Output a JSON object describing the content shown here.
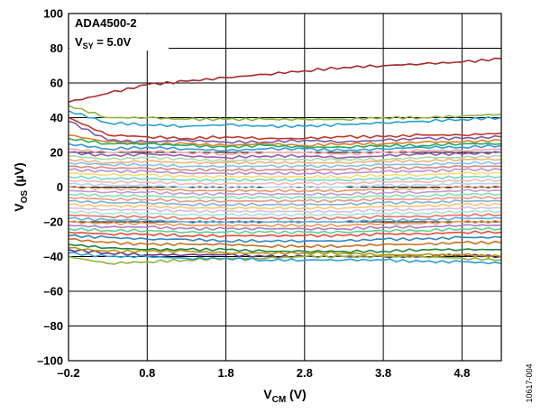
{
  "chart_data": {
    "type": "line",
    "title": "",
    "annotation": {
      "part": "ADA4500-2",
      "condition_prefix": "V",
      "condition_sub": "SY",
      "condition_suffix": " = 5.0V"
    },
    "xlabel": {
      "main": "V",
      "sub": "CM",
      "unit": " (V)"
    },
    "ylabel": {
      "main": "V",
      "sub": "OS",
      "unit": " (µV)"
    },
    "xlim": [
      -0.2,
      5.3
    ],
    "ylim": [
      -100,
      100
    ],
    "x_ticks": [
      -0.2,
      0.8,
      1.8,
      2.8,
      3.8,
      4.8
    ],
    "x_tick_labels": [
      "–0.2",
      "0.8",
      "1.8",
      "2.8",
      "3.8",
      "4.8"
    ],
    "y_ticks": [
      100,
      80,
      60,
      40,
      20,
      0,
      -20,
      -40,
      -60,
      -80,
      -100
    ],
    "y_tick_labels": [
      "100",
      "80",
      "60",
      "40",
      "20",
      "0",
      "–20",
      "–40",
      "–60",
      "–80",
      "–100"
    ],
    "grid": true,
    "legend": "none",
    "figure_id": "10617-004",
    "x": [
      -0.2,
      0.3,
      0.8,
      1.3,
      1.8,
      2.3,
      2.8,
      3.3,
      3.8,
      4.3,
      4.8,
      5.3
    ],
    "series": [
      {
        "color": "#a52a2a",
        "values": [
          49,
          54,
          59,
          61,
          63,
          65,
          67,
          69,
          70,
          71,
          72,
          74
        ]
      },
      {
        "color": "#8fb33a",
        "values": [
          47,
          40,
          40,
          39,
          39,
          39,
          39,
          39,
          40,
          40,
          41,
          42
        ]
      },
      {
        "color": "#2a9fd0",
        "values": [
          44,
          37,
          36,
          35,
          36,
          35,
          35,
          36,
          37,
          38,
          39,
          40
        ]
      },
      {
        "color": "#c0392b",
        "values": [
          40,
          30,
          29,
          28,
          29,
          28,
          28,
          29,
          29,
          30,
          30,
          31
        ]
      },
      {
        "color": "#7b5aa6",
        "values": [
          38,
          27,
          26,
          27,
          26,
          26,
          27,
          26,
          27,
          28,
          28,
          29
        ]
      },
      {
        "color": "#e67e22",
        "values": [
          30,
          26,
          25,
          25,
          24,
          25,
          24,
          25,
          25,
          26,
          26,
          27
        ]
      },
      {
        "color": "#27ae60",
        "values": [
          28,
          25,
          25,
          24,
          23,
          24,
          23,
          23,
          24,
          24,
          25,
          25
        ]
      },
      {
        "color": "#3498db",
        "values": [
          25,
          22,
          23,
          22,
          21,
          22,
          22,
          21,
          22,
          23,
          23,
          24
        ]
      },
      {
        "color": "#f4a6a6",
        "values": [
          22,
          20,
          21,
          20,
          19,
          20,
          20,
          19,
          20,
          21,
          21,
          22
        ]
      },
      {
        "color": "#9b59b6",
        "values": [
          20,
          18,
          19,
          18,
          17,
          18,
          18,
          17,
          18,
          19,
          19,
          20
        ]
      },
      {
        "color": "#a8d8a8",
        "values": [
          18,
          16,
          17,
          16,
          15,
          16,
          16,
          16,
          16,
          17,
          17,
          18
        ]
      },
      {
        "color": "#f0b27a",
        "values": [
          16,
          14,
          15,
          14,
          14,
          14,
          14,
          14,
          15,
          15,
          16,
          16
        ]
      },
      {
        "color": "#85c1e9",
        "values": [
          14,
          13,
          13,
          12,
          12,
          12,
          12,
          12,
          13,
          13,
          14,
          14
        ]
      },
      {
        "color": "#d98880",
        "values": [
          12,
          11,
          11,
          10,
          10,
          10,
          10,
          10,
          11,
          11,
          12,
          12
        ]
      },
      {
        "color": "#bb8fce",
        "values": [
          10,
          9,
          9,
          8,
          8,
          8,
          8,
          8,
          9,
          9,
          10,
          10
        ]
      },
      {
        "color": "#f7dc6f",
        "values": [
          8,
          7,
          7,
          6,
          6,
          6,
          6,
          6,
          7,
          7,
          8,
          8
        ]
      },
      {
        "color": "#76d7c4",
        "values": [
          6,
          5,
          5,
          4,
          4,
          4,
          4,
          4,
          5,
          5,
          6,
          6
        ]
      },
      {
        "color": "#f5b7b1",
        "values": [
          4,
          3,
          3,
          2,
          2,
          2,
          2,
          2,
          3,
          3,
          4,
          4
        ]
      },
      {
        "color": "#aed6f1",
        "values": [
          2,
          1,
          1,
          0,
          0,
          0,
          0,
          0,
          1,
          1,
          2,
          2
        ]
      },
      {
        "color": "#e59866",
        "values": [
          0,
          -1,
          -1,
          -2,
          -2,
          -2,
          -2,
          -2,
          -1,
          -1,
          0,
          0
        ]
      },
      {
        "color": "#c39bd3",
        "values": [
          -2,
          -3,
          -3,
          -4,
          -4,
          -4,
          -4,
          -4,
          -3,
          -3,
          -2,
          -2
        ]
      },
      {
        "color": "#82e0aa",
        "values": [
          -4,
          -5,
          -5,
          -6,
          -6,
          -6,
          -6,
          -6,
          -5,
          -5,
          -4,
          -4
        ]
      },
      {
        "color": "#f1948a",
        "values": [
          -6,
          -7,
          -7,
          -8,
          -8,
          -8,
          -8,
          -8,
          -7,
          -7,
          -6,
          -6
        ]
      },
      {
        "color": "#7fb3d5",
        "values": [
          -8,
          -9,
          -9,
          -10,
          -10,
          -10,
          -10,
          -10,
          -9,
          -9,
          -8,
          -8
        ]
      },
      {
        "color": "#f8c471",
        "values": [
          -10,
          -11,
          -11,
          -12,
          -12,
          -12,
          -12,
          -12,
          -11,
          -11,
          -10,
          -10
        ]
      },
      {
        "color": "#d7bde2",
        "values": [
          -12,
          -13,
          -13,
          -14,
          -14,
          -14,
          -14,
          -14,
          -13,
          -13,
          -12,
          -12
        ]
      },
      {
        "color": "#a3e4d7",
        "values": [
          -14,
          -15,
          -15,
          -16,
          -16,
          -16,
          -16,
          -16,
          -15,
          -15,
          -14,
          -14
        ]
      },
      {
        "color": "#ec7063",
        "values": [
          -16,
          -17,
          -17,
          -18,
          -18,
          -18,
          -18,
          -18,
          -17,
          -17,
          -16,
          -16
        ]
      },
      {
        "color": "#5dade2",
        "values": [
          -18,
          -19,
          -19,
          -20,
          -20,
          -20,
          -20,
          -20,
          -19,
          -19,
          -18,
          -18
        ]
      },
      {
        "color": "#eb984e",
        "values": [
          -20,
          -21,
          -21,
          -22,
          -22,
          -22,
          -22,
          -22,
          -21,
          -21,
          -20,
          -20
        ]
      },
      {
        "color": "#af7ac5",
        "values": [
          -22,
          -23,
          -23,
          -24,
          -24,
          -24,
          -24,
          -24,
          -23,
          -23,
          -22,
          -22
        ]
      },
      {
        "color": "#58d68d",
        "values": [
          -24,
          -25,
          -25,
          -26,
          -26,
          -26,
          -26,
          -26,
          -25,
          -25,
          -24,
          -24
        ]
      },
      {
        "color": "#e74c3c",
        "values": [
          -26,
          -27,
          -27,
          -28,
          -28,
          -28,
          -28,
          -28,
          -27,
          -27,
          -26,
          -26
        ]
      },
      {
        "color": "#2e86c1",
        "values": [
          -28,
          -29,
          -30,
          -30,
          -31,
          -31,
          -31,
          -31,
          -30,
          -30,
          -29,
          -29
        ]
      },
      {
        "color": "#ca6f1e",
        "values": [
          -30,
          -32,
          -33,
          -33,
          -33,
          -34,
          -34,
          -34,
          -33,
          -33,
          -32,
          -32
        ]
      },
      {
        "color": "#1e8449",
        "values": [
          -33,
          -35,
          -36,
          -36,
          -36,
          -37,
          -37,
          -37,
          -37,
          -36,
          -36,
          -36
        ]
      },
      {
        "color": "#6c3483",
        "values": [
          -36,
          -38,
          -39,
          -39,
          -39,
          -40,
          -40,
          -40,
          -40,
          -40,
          -39,
          -40
        ]
      },
      {
        "color": "#8fb33a",
        "values": [
          -40,
          -44,
          -43,
          -42,
          -41,
          -41,
          -40,
          -40,
          -40,
          -40,
          -41,
          -42
        ]
      },
      {
        "color": "#2a9fd0",
        "values": [
          -38,
          -40,
          -40,
          -41,
          -41,
          -42,
          -42,
          -42,
          -42,
          -43,
          -43,
          -44
        ]
      },
      {
        "color": "#b7950b",
        "values": [
          -35,
          -37,
          -37,
          -37,
          -38,
          -38,
          -38,
          -38,
          -39,
          -39,
          -39,
          -40
        ]
      }
    ]
  }
}
